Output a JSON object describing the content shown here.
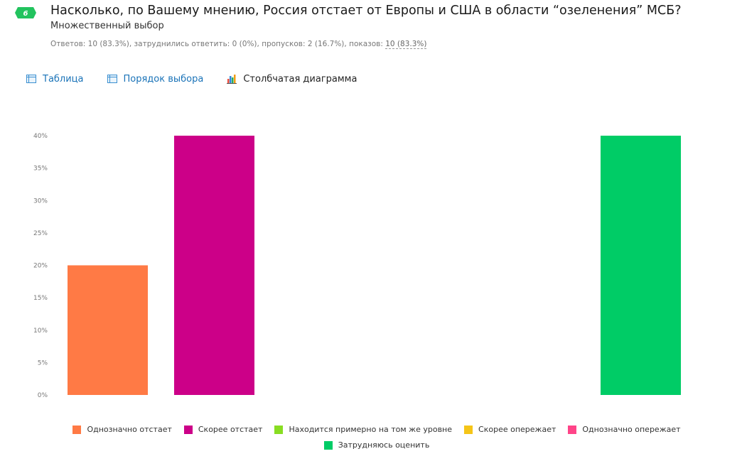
{
  "question": {
    "number": "6",
    "title": "Насколько, по Вашему мнению, Россия отстает от Европы и США в области “озеленения” МСБ?",
    "type": "Множественный выбор",
    "stats_prefix": "Ответов: 10 (83.3%), затруднились ответить: 0 (0%), пропусков: 2 (16.7%), показов: ",
    "stats_link": "10 (83.3%)"
  },
  "tabs": [
    {
      "label": "Таблица",
      "icon": "table-icon",
      "active": false
    },
    {
      "label": "Порядок выбора",
      "icon": "table-icon",
      "active": false
    },
    {
      "label": "Столбчатая диаграмма",
      "icon": "bar-chart-icon",
      "active": true
    }
  ],
  "colors": {
    "badge": "#22c35e",
    "link": "#1a73b8"
  },
  "chart_data": {
    "type": "bar",
    "categories": [
      "Однозначно отстает",
      "Скорее отстает",
      "Находится примерно на том же уровне",
      "Скорее опережает",
      "Однозначно опережает",
      "Затрудняюсь оценить"
    ],
    "values": [
      20,
      40,
      0,
      0,
      0,
      40
    ],
    "colors": [
      "#ff7a45",
      "#cc0088",
      "#88dd22",
      "#f5c518",
      "#ff4488",
      "#00cc66"
    ],
    "ylim": [
      0,
      40
    ],
    "yticks": [
      "0%",
      "5%",
      "10%",
      "15%",
      "20%",
      "25%",
      "30%",
      "35%",
      "40%"
    ],
    "grid": false,
    "legend_position": "bottom-center"
  }
}
